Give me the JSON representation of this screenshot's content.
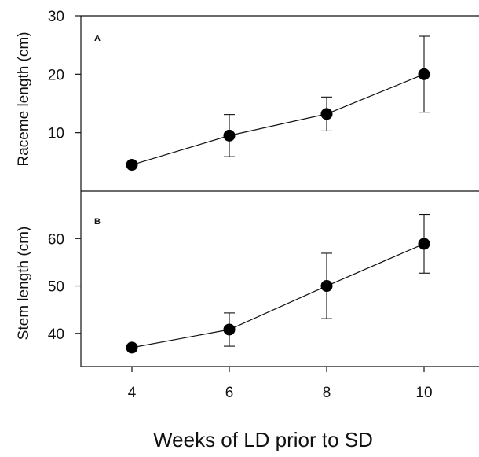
{
  "chart_data": [
    {
      "type": "line",
      "panel_label": "A",
      "ylabel": "Raceme length (cm)",
      "ylim": [
        0,
        30
      ],
      "yticks": [
        10,
        20,
        30
      ],
      "x": [
        4,
        6,
        8,
        10
      ],
      "series": [
        {
          "values": [
            4.5,
            9.5,
            13.2,
            20.0
          ],
          "error": [
            0,
            3.6,
            2.9,
            6.5
          ]
        }
      ],
      "grid": false
    },
    {
      "type": "line",
      "panel_label": "B",
      "ylabel": "Stem length (cm)",
      "ylim": [
        33,
        70
      ],
      "yticks": [
        40,
        50,
        60
      ],
      "x": [
        4,
        6,
        8,
        10
      ],
      "xticks": [
        "4",
        "6",
        "8",
        "10"
      ],
      "series": [
        {
          "values": [
            37.0,
            40.8,
            50.0,
            58.9
          ],
          "error": [
            0,
            3.5,
            6.9,
            6.2
          ]
        }
      ],
      "grid": false
    }
  ],
  "xlabel": "Weeks of LD prior to SD"
}
